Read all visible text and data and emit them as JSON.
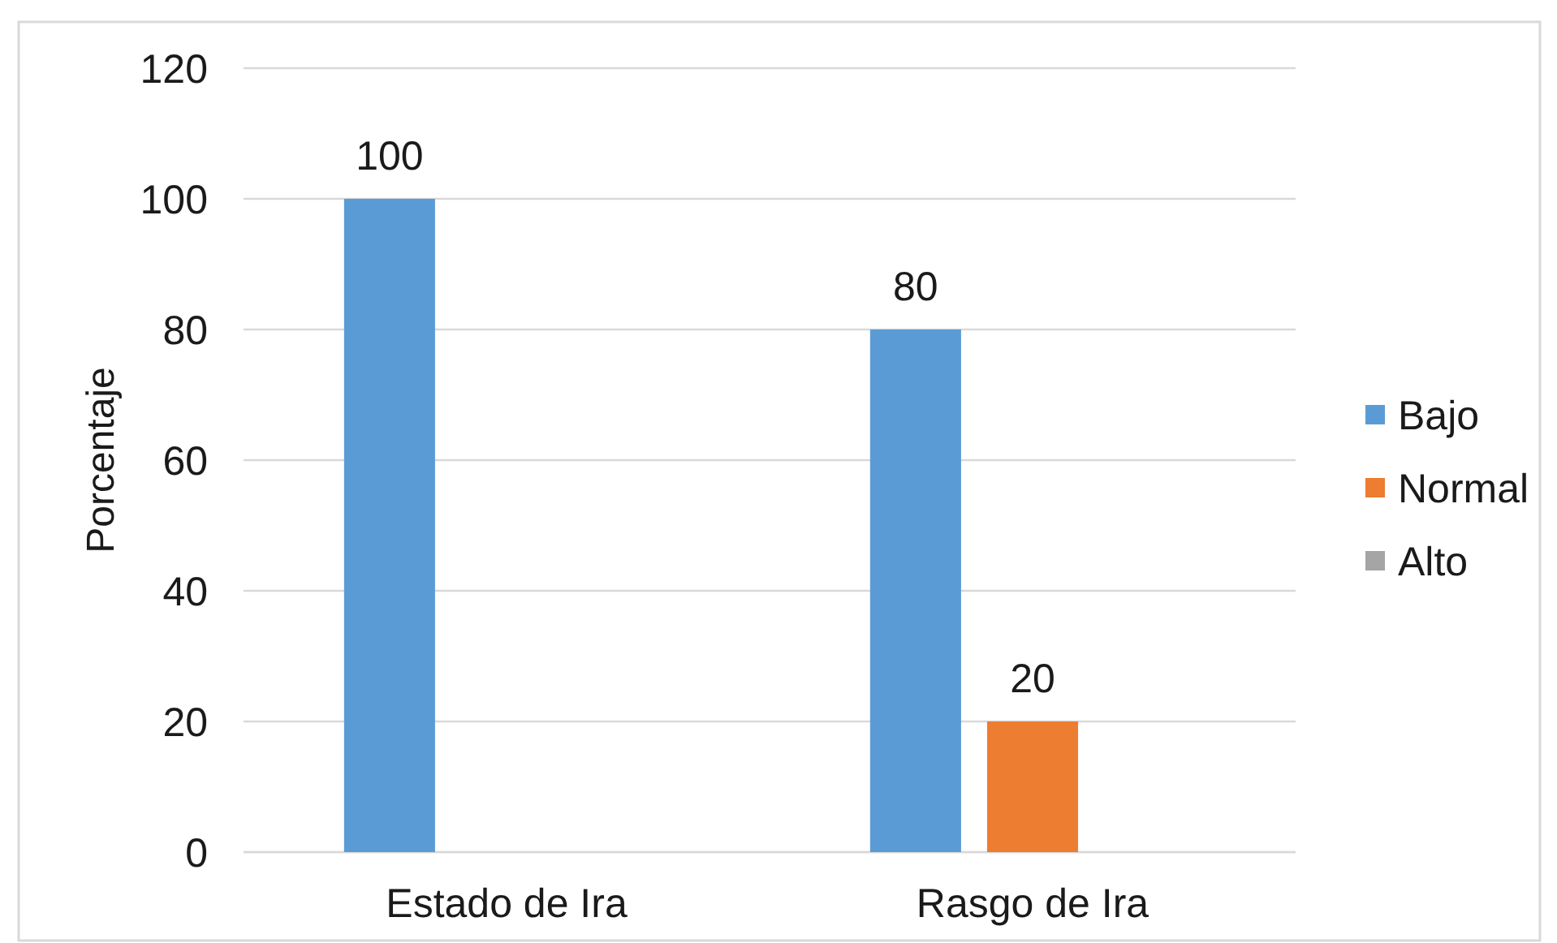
{
  "chart_data": {
    "type": "bar",
    "ylabel": "Porcentaje",
    "categories": [
      "Estado de Ira",
      "Rasgo de Ira"
    ],
    "series": [
      {
        "name": "Bajo",
        "color": "#5b9bd5",
        "values": [
          100,
          80
        ]
      },
      {
        "name": "Normal",
        "color": "#ed7d31",
        "values": [
          null,
          20
        ]
      },
      {
        "name": "Alto",
        "color": "#a5a5a5",
        "values": [
          null,
          null
        ]
      }
    ],
    "ylim": [
      0,
      120
    ],
    "yticks": [
      0,
      20,
      40,
      60,
      80,
      100,
      120
    ],
    "grid": "y",
    "data_labels": true,
    "legend": "right"
  }
}
